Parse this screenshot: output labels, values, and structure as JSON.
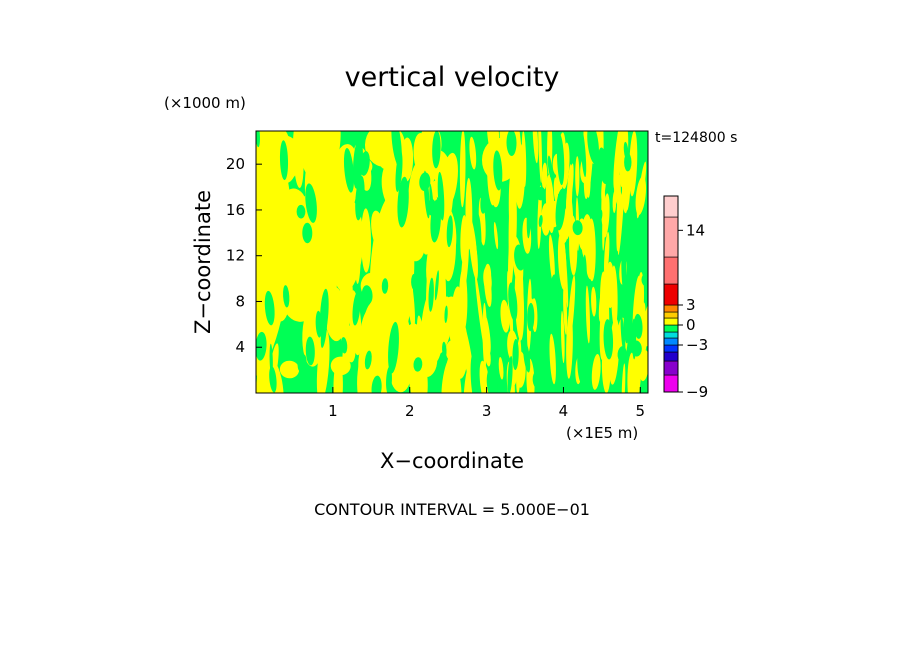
{
  "chart_data": {
    "type": "heatmap",
    "title": "vertical velocity",
    "time_label": "t=124800 s",
    "xlabel": "X−coordinate",
    "ylabel": "Z−coordinate",
    "x_unit": "(×1E5 m)",
    "y_unit": "(×1000 m)",
    "xlim": [
      0,
      5.1
    ],
    "ylim": [
      0,
      22.9
    ],
    "x_ticks": [
      1,
      2,
      3,
      4,
      5
    ],
    "y_ticks": [
      4,
      8,
      12,
      16,
      20
    ],
    "footer": "CONTOUR INTERVAL = 5.000E−01",
    "fill_colors": {
      "background": "#00ff55",
      "positive": "#ffff00"
    },
    "colorbar": {
      "tick_labels": [
        "14",
        "3",
        "0",
        "−3",
        "−9"
      ],
      "tick_values": [
        14,
        3,
        0,
        -3,
        -9
      ],
      "segments": [
        {
          "from": -9,
          "to": -7,
          "color": "#ee00ee"
        },
        {
          "from": -7,
          "to": -5.5,
          "color": "#8800cc"
        },
        {
          "from": -5.5,
          "to": -4,
          "color": "#2200cc"
        },
        {
          "from": -4,
          "to": -3,
          "color": "#0033ff"
        },
        {
          "from": -3,
          "to": -2,
          "color": "#0088ff"
        },
        {
          "from": -2,
          "to": -1,
          "color": "#00dddd"
        },
        {
          "from": -1,
          "to": 0,
          "color": "#00ff55"
        },
        {
          "from": 0,
          "to": 1,
          "color": "#ffff00"
        },
        {
          "from": 1,
          "to": 2,
          "color": "#ffcc00"
        },
        {
          "from": 2,
          "to": 3,
          "color": "#ff8800"
        },
        {
          "from": 3,
          "to": 5,
          "color": "#ee0000"
        },
        {
          "from": 5,
          "to": 10,
          "color": "#ff7070"
        },
        {
          "from": 10,
          "to": 16,
          "color": "#ffa8a8"
        },
        {
          "from": 16,
          "to": 20,
          "color": "#ffcece"
        }
      ]
    }
  }
}
